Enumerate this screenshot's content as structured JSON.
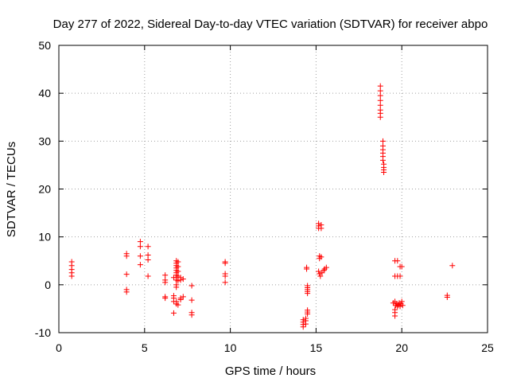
{
  "chart_data": {
    "type": "scatter",
    "title": "Day 277 of 2022, Sidereal Day-to-day VTEC variation (SDTVAR) for receiver abpo",
    "xlabel": "GPS time / hours",
    "ylabel": "SDTVAR / TECUs",
    "xlim": [
      0,
      25
    ],
    "ylim": [
      -10,
      50
    ],
    "xticks": [
      0,
      5,
      10,
      15,
      20,
      25
    ],
    "yticks": [
      -10,
      0,
      10,
      20,
      30,
      40,
      50
    ],
    "xtick_labels": [
      "0",
      "5",
      "10",
      "15",
      "20",
      "25"
    ],
    "ytick_labels": [
      "-10",
      "0",
      "10",
      "20",
      "30",
      "40",
      "50"
    ],
    "grid": true,
    "marker": "+",
    "color": "#ff0000",
    "series": [
      {
        "name": "SDTVAR",
        "points": [
          [
            0.75,
            4.8
          ],
          [
            0.75,
            4.0
          ],
          [
            0.75,
            3.2
          ],
          [
            0.75,
            2.5
          ],
          [
            0.75,
            1.8
          ],
          [
            3.95,
            6.5
          ],
          [
            3.95,
            6.0
          ],
          [
            3.95,
            2.2
          ],
          [
            3.95,
            -1.0
          ],
          [
            3.95,
            -1.5
          ],
          [
            4.75,
            9.0
          ],
          [
            4.75,
            8.0
          ],
          [
            4.75,
            6.0
          ],
          [
            4.75,
            4.2
          ],
          [
            5.2,
            8.0
          ],
          [
            5.2,
            6.2
          ],
          [
            5.2,
            5.2
          ],
          [
            5.2,
            1.8
          ],
          [
            6.2,
            2.0
          ],
          [
            6.2,
            1.0
          ],
          [
            6.2,
            0.5
          ],
          [
            6.2,
            -2.5
          ],
          [
            6.2,
            -2.8
          ],
          [
            6.7,
            1.5
          ],
          [
            6.7,
            -2.3
          ],
          [
            6.7,
            -2.8
          ],
          [
            6.7,
            -3.5
          ],
          [
            6.7,
            -5.9
          ],
          [
            6.85,
            5.0
          ],
          [
            6.85,
            4.5
          ],
          [
            6.85,
            4.0
          ],
          [
            6.85,
            3.5
          ],
          [
            6.85,
            3.0
          ],
          [
            6.85,
            2.5
          ],
          [
            6.85,
            2.0
          ],
          [
            6.85,
            1.5
          ],
          [
            6.85,
            1.0
          ],
          [
            6.85,
            0.0
          ],
          [
            6.85,
            -0.5
          ],
          [
            6.85,
            -3.5
          ],
          [
            6.85,
            -4.0
          ],
          [
            6.95,
            4.8
          ],
          [
            6.95,
            3.8
          ],
          [
            6.95,
            2.8
          ],
          [
            6.95,
            1.8
          ],
          [
            6.95,
            0.8
          ],
          [
            6.95,
            -4.2
          ],
          [
            7.1,
            1.5
          ],
          [
            7.1,
            1.0
          ],
          [
            7.1,
            -2.8
          ],
          [
            7.1,
            -3.1
          ],
          [
            7.25,
            1.2
          ],
          [
            7.25,
            -2.5
          ],
          [
            7.75,
            -0.2
          ],
          [
            7.75,
            -3.2
          ],
          [
            7.75,
            -5.8
          ],
          [
            7.75,
            -6.3
          ],
          [
            9.7,
            4.8
          ],
          [
            9.7,
            4.5
          ],
          [
            9.7,
            2.3
          ],
          [
            9.7,
            1.8
          ],
          [
            9.7,
            0.5
          ],
          [
            14.25,
            -7.3
          ],
          [
            14.25,
            -7.8
          ],
          [
            14.25,
            -8.3
          ],
          [
            14.25,
            -8.8
          ],
          [
            14.4,
            -7.0
          ],
          [
            14.4,
            -7.5
          ],
          [
            14.4,
            -8.2
          ],
          [
            14.45,
            3.6
          ],
          [
            14.45,
            3.3
          ],
          [
            14.5,
            -0.2
          ],
          [
            14.5,
            -0.6
          ],
          [
            14.5,
            -1.0
          ],
          [
            14.5,
            -1.4
          ],
          [
            14.5,
            -1.8
          ],
          [
            14.5,
            -5.3
          ],
          [
            14.5,
            -5.7
          ],
          [
            14.5,
            -6.1
          ],
          [
            15.15,
            12.8
          ],
          [
            15.15,
            12.3
          ],
          [
            15.15,
            11.8
          ],
          [
            15.3,
            12.5
          ],
          [
            15.3,
            11.8
          ],
          [
            15.2,
            6.0
          ],
          [
            15.2,
            5.5
          ],
          [
            15.3,
            5.8
          ],
          [
            15.15,
            2.8
          ],
          [
            15.2,
            2.3
          ],
          [
            15.25,
            1.8
          ],
          [
            15.35,
            2.5
          ],
          [
            15.45,
            3.0
          ],
          [
            15.5,
            3.3
          ],
          [
            15.6,
            3.6
          ],
          [
            18.75,
            41.5
          ],
          [
            18.75,
            40.5
          ],
          [
            18.75,
            39.5
          ],
          [
            18.75,
            38.5
          ],
          [
            18.75,
            37.5
          ],
          [
            18.75,
            36.5
          ],
          [
            18.75,
            35.8
          ],
          [
            18.75,
            35.0
          ],
          [
            18.9,
            30.0
          ],
          [
            18.9,
            29.0
          ],
          [
            18.9,
            28.2
          ],
          [
            18.9,
            27.5
          ],
          [
            18.9,
            26.8
          ],
          [
            18.9,
            26.0
          ],
          [
            18.95,
            25.2
          ],
          [
            18.95,
            24.5
          ],
          [
            18.95,
            24.0
          ],
          [
            18.95,
            23.5
          ],
          [
            19.6,
            5.0
          ],
          [
            19.6,
            1.8
          ],
          [
            19.75,
            5.0
          ],
          [
            19.75,
            1.8
          ],
          [
            19.9,
            3.8
          ],
          [
            19.9,
            1.8
          ],
          [
            20.0,
            3.8
          ],
          [
            19.5,
            -3.8
          ],
          [
            19.6,
            -3.5
          ],
          [
            19.65,
            -4.3
          ],
          [
            19.7,
            -4.0
          ],
          [
            19.75,
            -4.5
          ],
          [
            19.8,
            -4.2
          ],
          [
            19.85,
            -3.8
          ],
          [
            19.9,
            -4.5
          ],
          [
            19.95,
            -4.0
          ],
          [
            20.0,
            -3.5
          ],
          [
            20.05,
            -4.3
          ],
          [
            19.6,
            -5.2
          ],
          [
            19.6,
            -5.8
          ],
          [
            19.6,
            -6.5
          ],
          [
            22.65,
            -2.2
          ],
          [
            22.65,
            -2.6
          ],
          [
            22.95,
            4.0
          ]
        ]
      }
    ]
  }
}
